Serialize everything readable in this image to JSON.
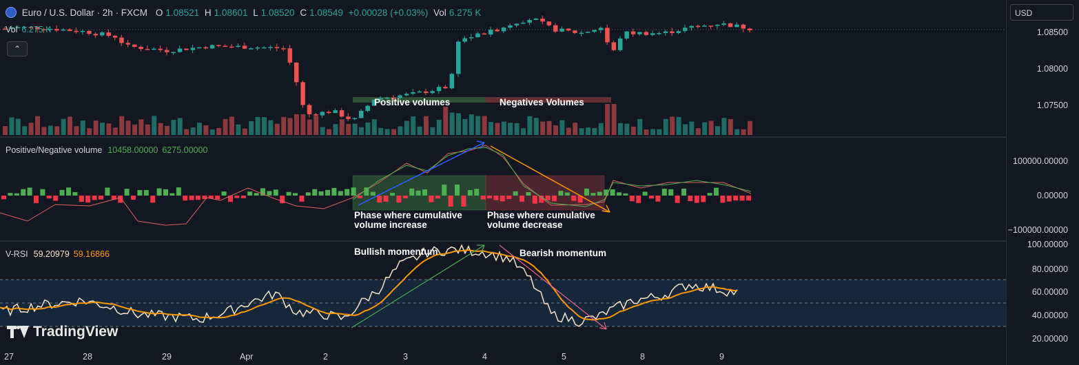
{
  "header": {
    "symbol": "Euro / U.S. Dollar · 2h · FXCM",
    "open_label": "O",
    "open": "1.08521",
    "high_label": "H",
    "high": "1.08601",
    "low_label": "L",
    "low": "1.08520",
    "close_label": "C",
    "close": "1.08549",
    "change": "+0.00028 (+0.03%)",
    "vol_label": "Vol",
    "vol": "6.275 K"
  },
  "vol_legend": {
    "label": "Vol",
    "value": "6.275 K"
  },
  "currency": "USD",
  "price_axis": [
    "1.08500",
    "1.08000",
    "1.07500"
  ],
  "pn_pane": {
    "title": "Positive/Negative volume",
    "pos": "10458.00000",
    "neg": "6275.00000"
  },
  "pn_axis": [
    "100000.00000",
    "0.00000",
    "−100000.00000"
  ],
  "rsi_pane": {
    "title": "V-RSI",
    "v1": "59.20979",
    "v2": "59.16866"
  },
  "rsi_axis": [
    "100.00000",
    "80.00000",
    "60.00000",
    "40.00000",
    "20.00000"
  ],
  "time_axis": [
    "27",
    "28",
    "29",
    "Apr",
    "2",
    "3",
    "4",
    "5",
    "8",
    "9"
  ],
  "annotations": {
    "pos_volumes": "Positive volumes",
    "neg_volumes": "Negatives Volumes",
    "phase_inc_1": "Phase where cumulative",
    "phase_inc_2": "volume increase",
    "phase_dec_1": "Phase where cumulative",
    "phase_dec_2": "volume decrease",
    "bullish": "Bullish momentum",
    "bearish": "Bearish momentum"
  },
  "brand": "TradingView",
  "colors": {
    "bg": "#131722",
    "up": "#26a69a",
    "down": "#ef5350",
    "vol_up": "#1f6b66",
    "vol_down": "#8c3a3e",
    "pn_up": "#4caf50",
    "pn_down": "#f23645",
    "rsi_line": "#f5e6c8",
    "rsi_ma": "#ff9800",
    "grid": "#2a2e39",
    "green_line": "#4caf50",
    "red_line": "#f23645",
    "blue_arrow": "#2962ff",
    "orange_arrow": "#ff9800"
  },
  "icons": [
    "euro-dollar-flag-icon",
    "chevron-up-icon",
    "tradingview-logo-icon"
  ]
}
